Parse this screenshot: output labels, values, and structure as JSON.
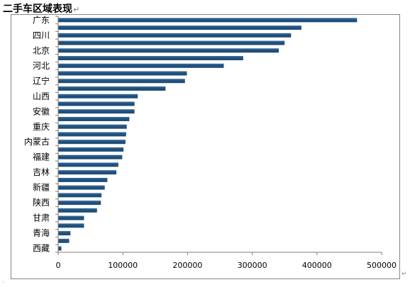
{
  "document": {
    "title": "二手车区域表现",
    "paragraph_mark": "↵"
  },
  "colors": {
    "bar": "#1F4E79",
    "bar_highlight": "#3C6E9E",
    "axis": "#7F7F7F",
    "text": "#000000"
  },
  "chart_data": {
    "type": "bar",
    "orientation": "horizontal",
    "categories": [
      "广东",
      "",
      "四川",
      "",
      "北京",
      "",
      "河北",
      "",
      "辽宁",
      "",
      "山西",
      "",
      "安徽",
      "",
      "重庆",
      "",
      "内蒙古",
      "",
      "福建",
      "",
      "吉林",
      "",
      "新疆",
      "",
      "陕西",
      "",
      "甘肃",
      "",
      "青海",
      "",
      "西藏"
    ],
    "values": [
      462000,
      376000,
      360000,
      350000,
      341000,
      286000,
      256000,
      199000,
      196000,
      166000,
      123000,
      118000,
      118000,
      110000,
      106000,
      105000,
      104000,
      101000,
      99000,
      93000,
      90000,
      76000,
      72000,
      67000,
      66000,
      60000,
      40000,
      40000,
      19000,
      17000,
      5000
    ],
    "xlim": [
      0,
      500000
    ],
    "xticks": [
      0,
      100000,
      200000,
      300000,
      400000,
      500000
    ],
    "xtick_labels": [
      "0",
      "100000",
      "200000",
      "300000",
      "400000",
      "500000"
    ],
    "grid": false,
    "legend": "none"
  }
}
